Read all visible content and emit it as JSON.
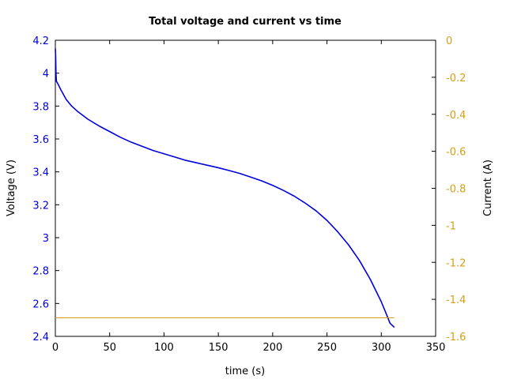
{
  "chart_data": {
    "type": "line",
    "title": "Total voltage and current vs time",
    "xlabel": "time (s)",
    "ylabel": "Voltage (V)",
    "y2label": "Current (A)",
    "xlim": [
      0,
      350
    ],
    "ylim": [
      2.4,
      4.2
    ],
    "y2lim": [
      -1.6,
      0
    ],
    "x_ticks": [
      "0",
      "50",
      "100",
      "150",
      "200",
      "250",
      "300",
      "350"
    ],
    "y_ticks": [
      "2.4",
      "2.6",
      "2.8",
      "3",
      "3.2",
      "3.4",
      "3.6",
      "3.8",
      "4",
      "4.2"
    ],
    "y2_ticks": [
      "-1.6",
      "-1.4",
      "-1.2",
      "-1",
      "-0.8",
      "-0.6",
      "-0.4",
      "-0.2",
      "0"
    ],
    "grid": false,
    "series": [
      {
        "name": "",
        "axis": "left",
        "color": "#0000dd",
        "x": [
          0,
          0.3,
          0.6,
          1,
          2,
          5,
          10,
          15,
          20,
          30,
          40,
          50,
          60,
          70,
          80,
          90,
          100,
          110,
          120,
          130,
          140,
          150,
          160,
          170,
          180,
          190,
          200,
          210,
          220,
          230,
          240,
          250,
          260,
          270,
          280,
          290,
          300,
          305,
          308,
          312
        ],
        "y": [
          4.15,
          4.1,
          4.0,
          3.95,
          3.94,
          3.9,
          3.84,
          3.8,
          3.77,
          3.72,
          3.68,
          3.645,
          3.61,
          3.58,
          3.555,
          3.53,
          3.51,
          3.49,
          3.47,
          3.455,
          3.44,
          3.425,
          3.408,
          3.39,
          3.368,
          3.345,
          3.318,
          3.287,
          3.252,
          3.21,
          3.163,
          3.105,
          3.035,
          2.955,
          2.86,
          2.745,
          2.61,
          2.53,
          2.48,
          2.455
        ]
      },
      {
        "name": "",
        "axis": "right",
        "color": "#d4a017",
        "x": [
          0,
          312
        ],
        "y": [
          -1.5,
          -1.5
        ]
      }
    ]
  }
}
